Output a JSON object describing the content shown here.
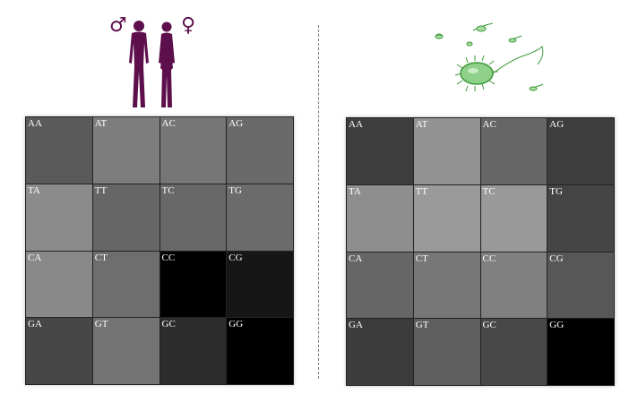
{
  "human_panel": {
    "male_symbol": "♂",
    "female_symbol": "♀",
    "colors": {
      "figure": "#5d0f4c"
    },
    "cells": [
      {
        "label": "AA",
        "shade": "#5a5a5a"
      },
      {
        "label": "AT",
        "shade": "#7d7d7d"
      },
      {
        "label": "AC",
        "shade": "#767676"
      },
      {
        "label": "AG",
        "shade": "#6a6a6a"
      },
      {
        "label": "TA",
        "shade": "#8b8b8b"
      },
      {
        "label": "TT",
        "shade": "#666666"
      },
      {
        "label": "TC",
        "shade": "#686868"
      },
      {
        "label": "TG",
        "shade": "#6b6b6b"
      },
      {
        "label": "CA",
        "shade": "#898989"
      },
      {
        "label": "CT",
        "shade": "#6e6e6e"
      },
      {
        "label": "CC",
        "shade": "#000000"
      },
      {
        "label": "CG",
        "shade": "#161616"
      },
      {
        "label": "GA",
        "shade": "#474747"
      },
      {
        "label": "GT",
        "shade": "#747474"
      },
      {
        "label": "GC",
        "shade": "#2c2c2c"
      },
      {
        "label": "GG",
        "shade": "#000000"
      }
    ]
  },
  "bacteria_panel": {
    "colors": {
      "bacterium": "#3f9a3a"
    },
    "cells": [
      {
        "label": "AA",
        "shade": "#3e3e3e"
      },
      {
        "label": "AT",
        "shade": "#929292"
      },
      {
        "label": "AC",
        "shade": "#666666"
      },
      {
        "label": "AG",
        "shade": "#3d3d3d"
      },
      {
        "label": "TA",
        "shade": "#8e8e8e"
      },
      {
        "label": "TT",
        "shade": "#9a9a9a"
      },
      {
        "label": "TC",
        "shade": "#999999"
      },
      {
        "label": "TG",
        "shade": "#454545"
      },
      {
        "label": "CA",
        "shade": "#666666"
      },
      {
        "label": "CT",
        "shade": "#777777"
      },
      {
        "label": "CC",
        "shade": "#808080"
      },
      {
        "label": "CG",
        "shade": "#575757"
      },
      {
        "label": "GA",
        "shade": "#3c3c3c"
      },
      {
        "label": "GT",
        "shade": "#5e5e5e"
      },
      {
        "label": "GC",
        "shade": "#484848"
      },
      {
        "label": "GG",
        "shade": "#000000"
      }
    ]
  }
}
